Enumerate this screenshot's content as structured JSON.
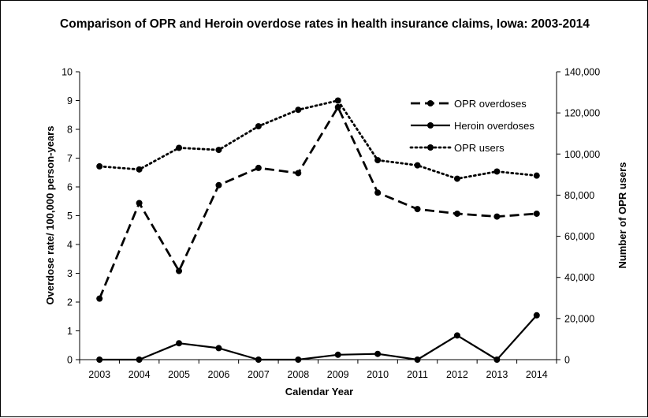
{
  "chart_data": {
    "type": "line",
    "title": "Comparison of OPR and Heroin overdose rates in health insurance claims, Iowa: 2003-2014",
    "xlabel": "Calendar Year",
    "ylabel": "Overdose rate/ 100,000 person-years",
    "y2label": "Number of OPR users",
    "categories": [
      "2003",
      "2004",
      "2005",
      "2006",
      "2007",
      "2008",
      "2009",
      "2010",
      "2011",
      "2012",
      "2013",
      "2014"
    ],
    "ylim": [
      0,
      10
    ],
    "y2lim": [
      0,
      140000
    ],
    "yticks": [
      "0",
      "1",
      "2",
      "3",
      "4",
      "5",
      "6",
      "7",
      "8",
      "9",
      "10"
    ],
    "y2ticks": [
      "0",
      "20,000",
      "40,000",
      "60,000",
      "80,000",
      "100,000",
      "120,000",
      "140,000"
    ],
    "grid": false,
    "legend_position": "top-right",
    "series": [
      {
        "name": "OPR overdoses",
        "axis": "left",
        "style": "dashed",
        "values": [
          2.12,
          5.44,
          3.08,
          6.06,
          6.66,
          6.48,
          8.77,
          5.8,
          5.23,
          5.07,
          4.97,
          5.07
        ]
      },
      {
        "name": "Heroin overdoses",
        "axis": "left",
        "style": "solid",
        "values": [
          0.0,
          0.0,
          0.57,
          0.4,
          0.0,
          0.0,
          0.17,
          0.2,
          0.0,
          0.84,
          0.0,
          1.54
        ]
      },
      {
        "name": "OPR users",
        "axis": "right",
        "style": "dotted",
        "values": [
          94000,
          92500,
          103000,
          102000,
          113500,
          121500,
          126000,
          97000,
          94500,
          88000,
          91500,
          89500
        ]
      }
    ]
  }
}
